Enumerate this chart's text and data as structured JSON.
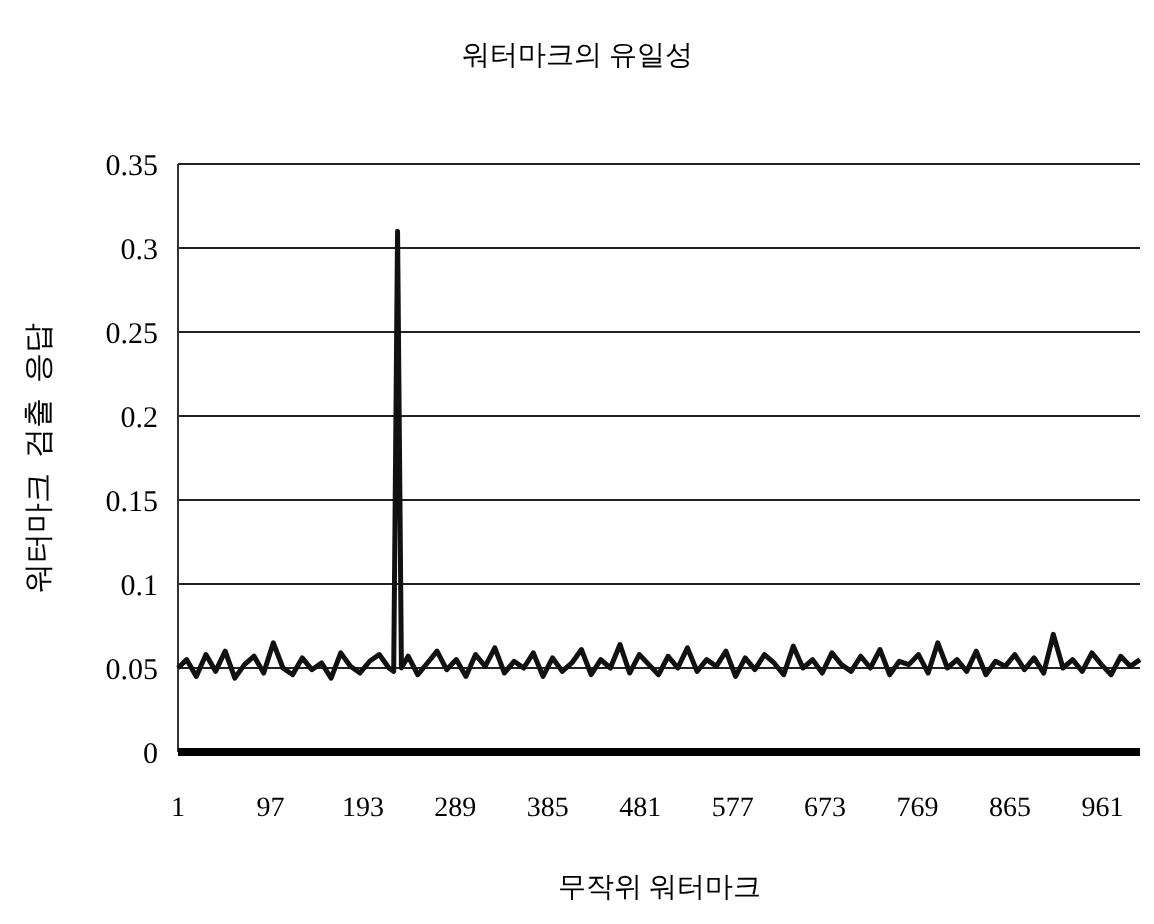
{
  "chart_data": {
    "type": "line",
    "title": "워터마크의 유일성",
    "xlabel": "무작위 워터마크",
    "ylabel": "워터마크  검출  응답",
    "x": [
      1,
      10,
      20,
      30,
      40,
      50,
      60,
      70,
      80,
      90,
      100,
      110,
      120,
      130,
      140,
      150,
      160,
      170,
      180,
      190,
      200,
      210,
      220,
      225,
      229,
      233,
      240,
      250,
      260,
      270,
      280,
      290,
      300,
      310,
      320,
      330,
      340,
      350,
      360,
      370,
      380,
      390,
      400,
      410,
      420,
      430,
      440,
      450,
      460,
      470,
      480,
      490,
      500,
      510,
      520,
      530,
      540,
      550,
      560,
      570,
      580,
      590,
      600,
      610,
      620,
      630,
      640,
      650,
      660,
      670,
      680,
      690,
      700,
      710,
      720,
      730,
      740,
      750,
      760,
      770,
      780,
      790,
      800,
      810,
      820,
      830,
      840,
      850,
      860,
      870,
      880,
      890,
      900,
      910,
      920,
      930,
      940,
      950,
      960,
      970,
      980,
      990,
      1000
    ],
    "series": [
      {
        "color": "#111111",
        "values": [
          0.05,
          0.055,
          0.045,
          0.058,
          0.048,
          0.06,
          0.044,
          0.052,
          0.057,
          0.047,
          0.065,
          0.05,
          0.046,
          0.056,
          0.049,
          0.053,
          0.044,
          0.059,
          0.051,
          0.047,
          0.054,
          0.058,
          0.05,
          0.048,
          0.31,
          0.05,
          0.057,
          0.046,
          0.053,
          0.06,
          0.049,
          0.055,
          0.045,
          0.058,
          0.051,
          0.062,
          0.047,
          0.054,
          0.05,
          0.059,
          0.045,
          0.056,
          0.048,
          0.053,
          0.061,
          0.046,
          0.055,
          0.05,
          0.064,
          0.047,
          0.058,
          0.052,
          0.046,
          0.057,
          0.05,
          0.062,
          0.048,
          0.055,
          0.051,
          0.06,
          0.045,
          0.056,
          0.049,
          0.058,
          0.053,
          0.046,
          0.063,
          0.05,
          0.055,
          0.047,
          0.059,
          0.052,
          0.048,
          0.057,
          0.05,
          0.061,
          0.046,
          0.054,
          0.052,
          0.058,
          0.047,
          0.065,
          0.05,
          0.055,
          0.048,
          0.06,
          0.046,
          0.054,
          0.051,
          0.058,
          0.049,
          0.056,
          0.047,
          0.07,
          0.05,
          0.055,
          0.048,
          0.059,
          0.052,
          0.046,
          0.057,
          0.051,
          0.055
        ]
      }
    ],
    "xlim": [
      1,
      1000
    ],
    "xticks": [
      1,
      97,
      193,
      289,
      385,
      481,
      577,
      673,
      769,
      865,
      961
    ],
    "ylim": [
      0,
      0.35
    ],
    "yticks": [
      0,
      0.05,
      0.1,
      0.15,
      0.2,
      0.25,
      0.3,
      0.35
    ],
    "grid": "y"
  }
}
